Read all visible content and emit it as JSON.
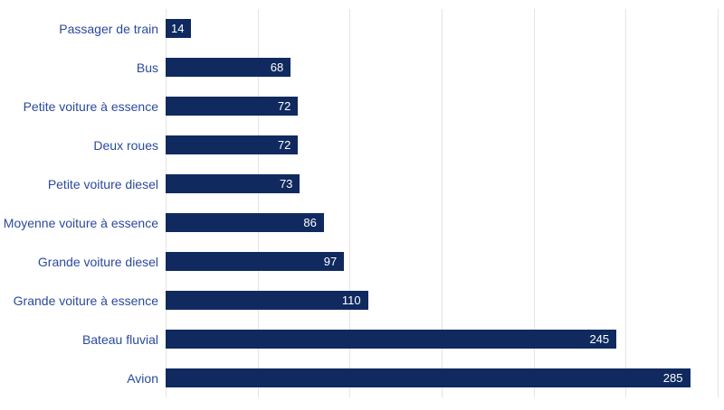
{
  "page": {
    "background": "#ffffff"
  },
  "chart_data": {
    "type": "bar",
    "orientation": "horizontal",
    "title": "",
    "subtitle": "",
    "xlabel": "",
    "ylabel": "",
    "legend": "none",
    "grid": "vertical-only",
    "value_label_position": "inside-end",
    "categories": [
      "Passager de train",
      "Bus",
      "Petite voiture à essence",
      "Deux roues",
      "Petite voiture diesel",
      "Moyenne voiture à essence",
      "Grande voiture diesel",
      "Grande voiture à essence",
      "Bateau fluvial",
      "Avion"
    ],
    "values": [
      14,
      68,
      72,
      72,
      73,
      86,
      97,
      110,
      245,
      285
    ],
    "xlim": [
      0,
      300
    ],
    "gridline_values": [
      0,
      50,
      100,
      150,
      200,
      250,
      300
    ],
    "colors": {
      "bar": "#102a60",
      "category_label": "#2a4a9d",
      "value_label": "#ffffff",
      "gridline": "#e4e4e4",
      "background": "#ffffff"
    }
  }
}
